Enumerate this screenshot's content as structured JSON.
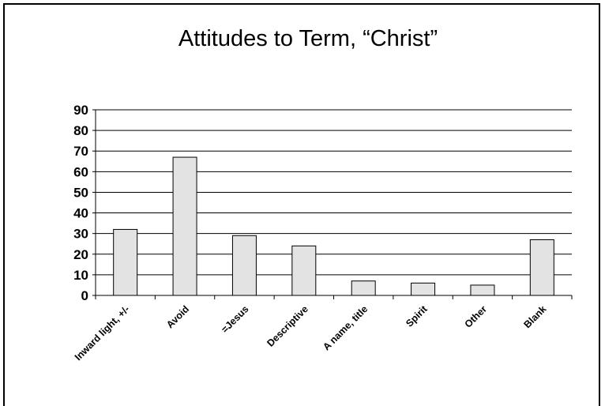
{
  "chart_data": {
    "type": "bar",
    "title": "Attitudes to Term,  “Christ”",
    "xlabel": "",
    "ylabel": "",
    "categories": [
      "Inward light, +/-",
      "Avoid",
      "=Jesus",
      "Descriptive",
      "A name, title",
      "Spirit",
      "Other",
      "Blank"
    ],
    "values": [
      32,
      67,
      29,
      24,
      7,
      6,
      5,
      27
    ],
    "ylim": [
      0,
      90
    ],
    "yticks": [
      "0",
      "10",
      "20",
      "30",
      "40",
      "50",
      "60",
      "70",
      "80",
      "90"
    ],
    "grid": true,
    "legend": "none",
    "colors": {
      "bar_fill": "#e3e3e3",
      "bar_stroke": "#000000",
      "grid": "#000000",
      "text": "#000000"
    }
  }
}
